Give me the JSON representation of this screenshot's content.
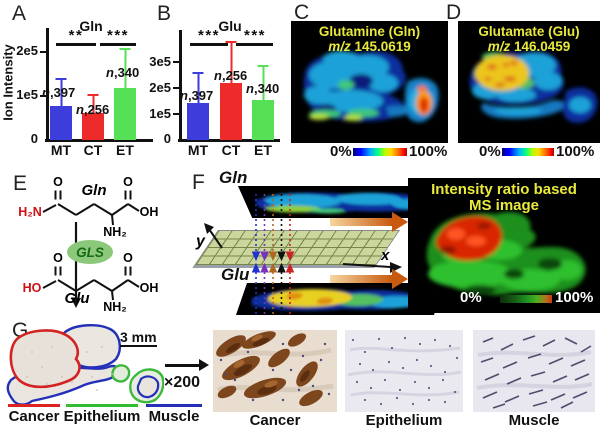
{
  "panel_a": {
    "label": "A",
    "title": "Gln",
    "y_axis_label": "Ion Intensity",
    "y_ticks": [
      "2e5",
      "1e5",
      "0"
    ],
    "x_ticks": [
      "MT",
      "CT",
      "ET"
    ],
    "sig_left": "**",
    "sig_right": "***",
    "n_prefix": "n",
    "n_labels": [
      ",397",
      ",256",
      ",340"
    ],
    "bar_colors": [
      "#3d3ddb",
      "#ee2b2b",
      "#55e055"
    ]
  },
  "panel_b": {
    "label": "B",
    "title": "Glu",
    "y_ticks": [
      "3e5",
      "2e5",
      "1e5",
      "0"
    ],
    "x_ticks": [
      "MT",
      "CT",
      "ET"
    ],
    "sig_left": "***",
    "sig_right": "***",
    "n_prefix": "n",
    "n_labels": [
      ",397",
      ",256",
      ",340"
    ]
  },
  "panel_c": {
    "label": "C",
    "title": "Glutamine (Gln)",
    "mz_prefix": "m/z",
    "mz_value": "145.0619",
    "colorbar_min": "0%",
    "colorbar_max": "100%"
  },
  "panel_d": {
    "label": "D",
    "title": "Glutamate (Glu)",
    "mz_prefix": "m/z",
    "mz_value": "146.0459",
    "colorbar_min": "0%",
    "colorbar_max": "100%"
  },
  "panel_e": {
    "label": "E",
    "molecule_top": "Gln",
    "molecule_bottom": "Glu",
    "enzyme": "GLS",
    "atoms": {
      "O": "O",
      "H2N": "H₂N",
      "NH2": "NH₂",
      "OH": "OH",
      "HO": "HO"
    }
  },
  "panel_f": {
    "label": "F",
    "top_image_label": "Gln",
    "bottom_image_label": "Glu",
    "axis_x": "x",
    "axis_y": "y",
    "result_title_line1": "Intensity ratio based",
    "result_title_line2": "MS image",
    "colorbar_min": "0%",
    "colorbar_max": "100%"
  },
  "panel_g": {
    "label": "G",
    "scale_bar": "3 mm",
    "magnification": "×200",
    "outline_legend": [
      {
        "label": "Cancer",
        "color": "#dd2222"
      },
      {
        "label": "Epithelium",
        "color": "#33bb33"
      },
      {
        "label": "Muscle",
        "color": "#2530b8"
      }
    ],
    "micrograph_labels": [
      "Cancer",
      "Epithelium",
      "Muscle"
    ]
  },
  "chart_data": [
    {
      "type": "bar",
      "panel": "A",
      "title": "Gln",
      "ylabel": "Ion Intensity",
      "categories": [
        "MT",
        "CT",
        "ET"
      ],
      "values": [
        78000,
        61000,
        118000
      ],
      "errors_up": [
        64000,
        44000,
        91000
      ],
      "n": [
        397,
        256,
        340
      ],
      "significance": [
        {
          "pair": [
            "MT",
            "CT"
          ],
          "stars": "**"
        },
        {
          "pair": [
            "CT",
            "ET"
          ],
          "stars": "***"
        }
      ],
      "ylim": [
        0,
        250000
      ],
      "yticks": [
        0,
        100000,
        200000
      ],
      "bar_colors": [
        "#3d3ddb",
        "#ee2b2b",
        "#55e055"
      ],
      "legend_position": "none",
      "grid": false
    },
    {
      "type": "bar",
      "panel": "B",
      "title": "Glu",
      "ylabel": "Ion Intensity",
      "categories": [
        "MT",
        "CT",
        "ET"
      ],
      "values": [
        142000,
        220000,
        155000
      ],
      "errors_up": [
        118000,
        160000,
        135000
      ],
      "n": [
        397,
        256,
        340
      ],
      "significance": [
        {
          "pair": [
            "MT",
            "CT"
          ],
          "stars": "***"
        },
        {
          "pair": [
            "CT",
            "ET"
          ],
          "stars": "***"
        }
      ],
      "ylim": [
        0,
        400000
      ],
      "yticks": [
        0,
        100000,
        200000,
        300000
      ],
      "bar_colors": [
        "#3d3ddb",
        "#ee2b2b",
        "#55e055"
      ],
      "legend_position": "none",
      "grid": false
    }
  ]
}
